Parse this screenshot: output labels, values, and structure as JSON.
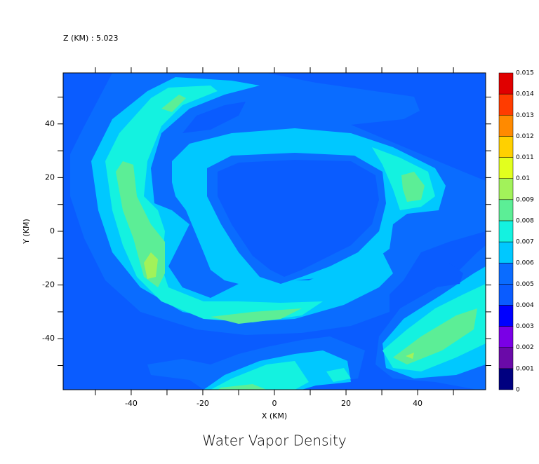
{
  "chart_data": {
    "type": "contour",
    "title": "Water Vapor Density",
    "subtitle": "Z (KM) : 5.023",
    "xlabel": "X (KM)",
    "ylabel": "Y (KM)",
    "xlim": [
      -59,
      59
    ],
    "ylim": [
      -59,
      59
    ],
    "xticks": [
      -40,
      -20,
      0,
      20,
      40
    ],
    "yticks": [
      -40,
      -20,
      0,
      20,
      40
    ],
    "xminorticks": [
      -50,
      -30,
      -10,
      10,
      30,
      50
    ],
    "yminorticks": [
      -50,
      -30,
      -10,
      10,
      30,
      50
    ],
    "levels": [
      0,
      0.001,
      0.002,
      0.003,
      0.004,
      0.005,
      0.006,
      0.007,
      0.008,
      0.009,
      0.01,
      0.011,
      0.012,
      0.013,
      0.014,
      0.015
    ],
    "colors": [
      "#000080",
      "#6a0aa8",
      "#7a00e6",
      "#0000ff",
      "#0a5cff",
      "#0a6cff",
      "#00c8ff",
      "#14f2e0",
      "#5cee96",
      "#a2f25a",
      "#e2ff1e",
      "#ffd000",
      "#ff8a00",
      "#ff3c00",
      "#e00000",
      "#a00000"
    ]
  }
}
